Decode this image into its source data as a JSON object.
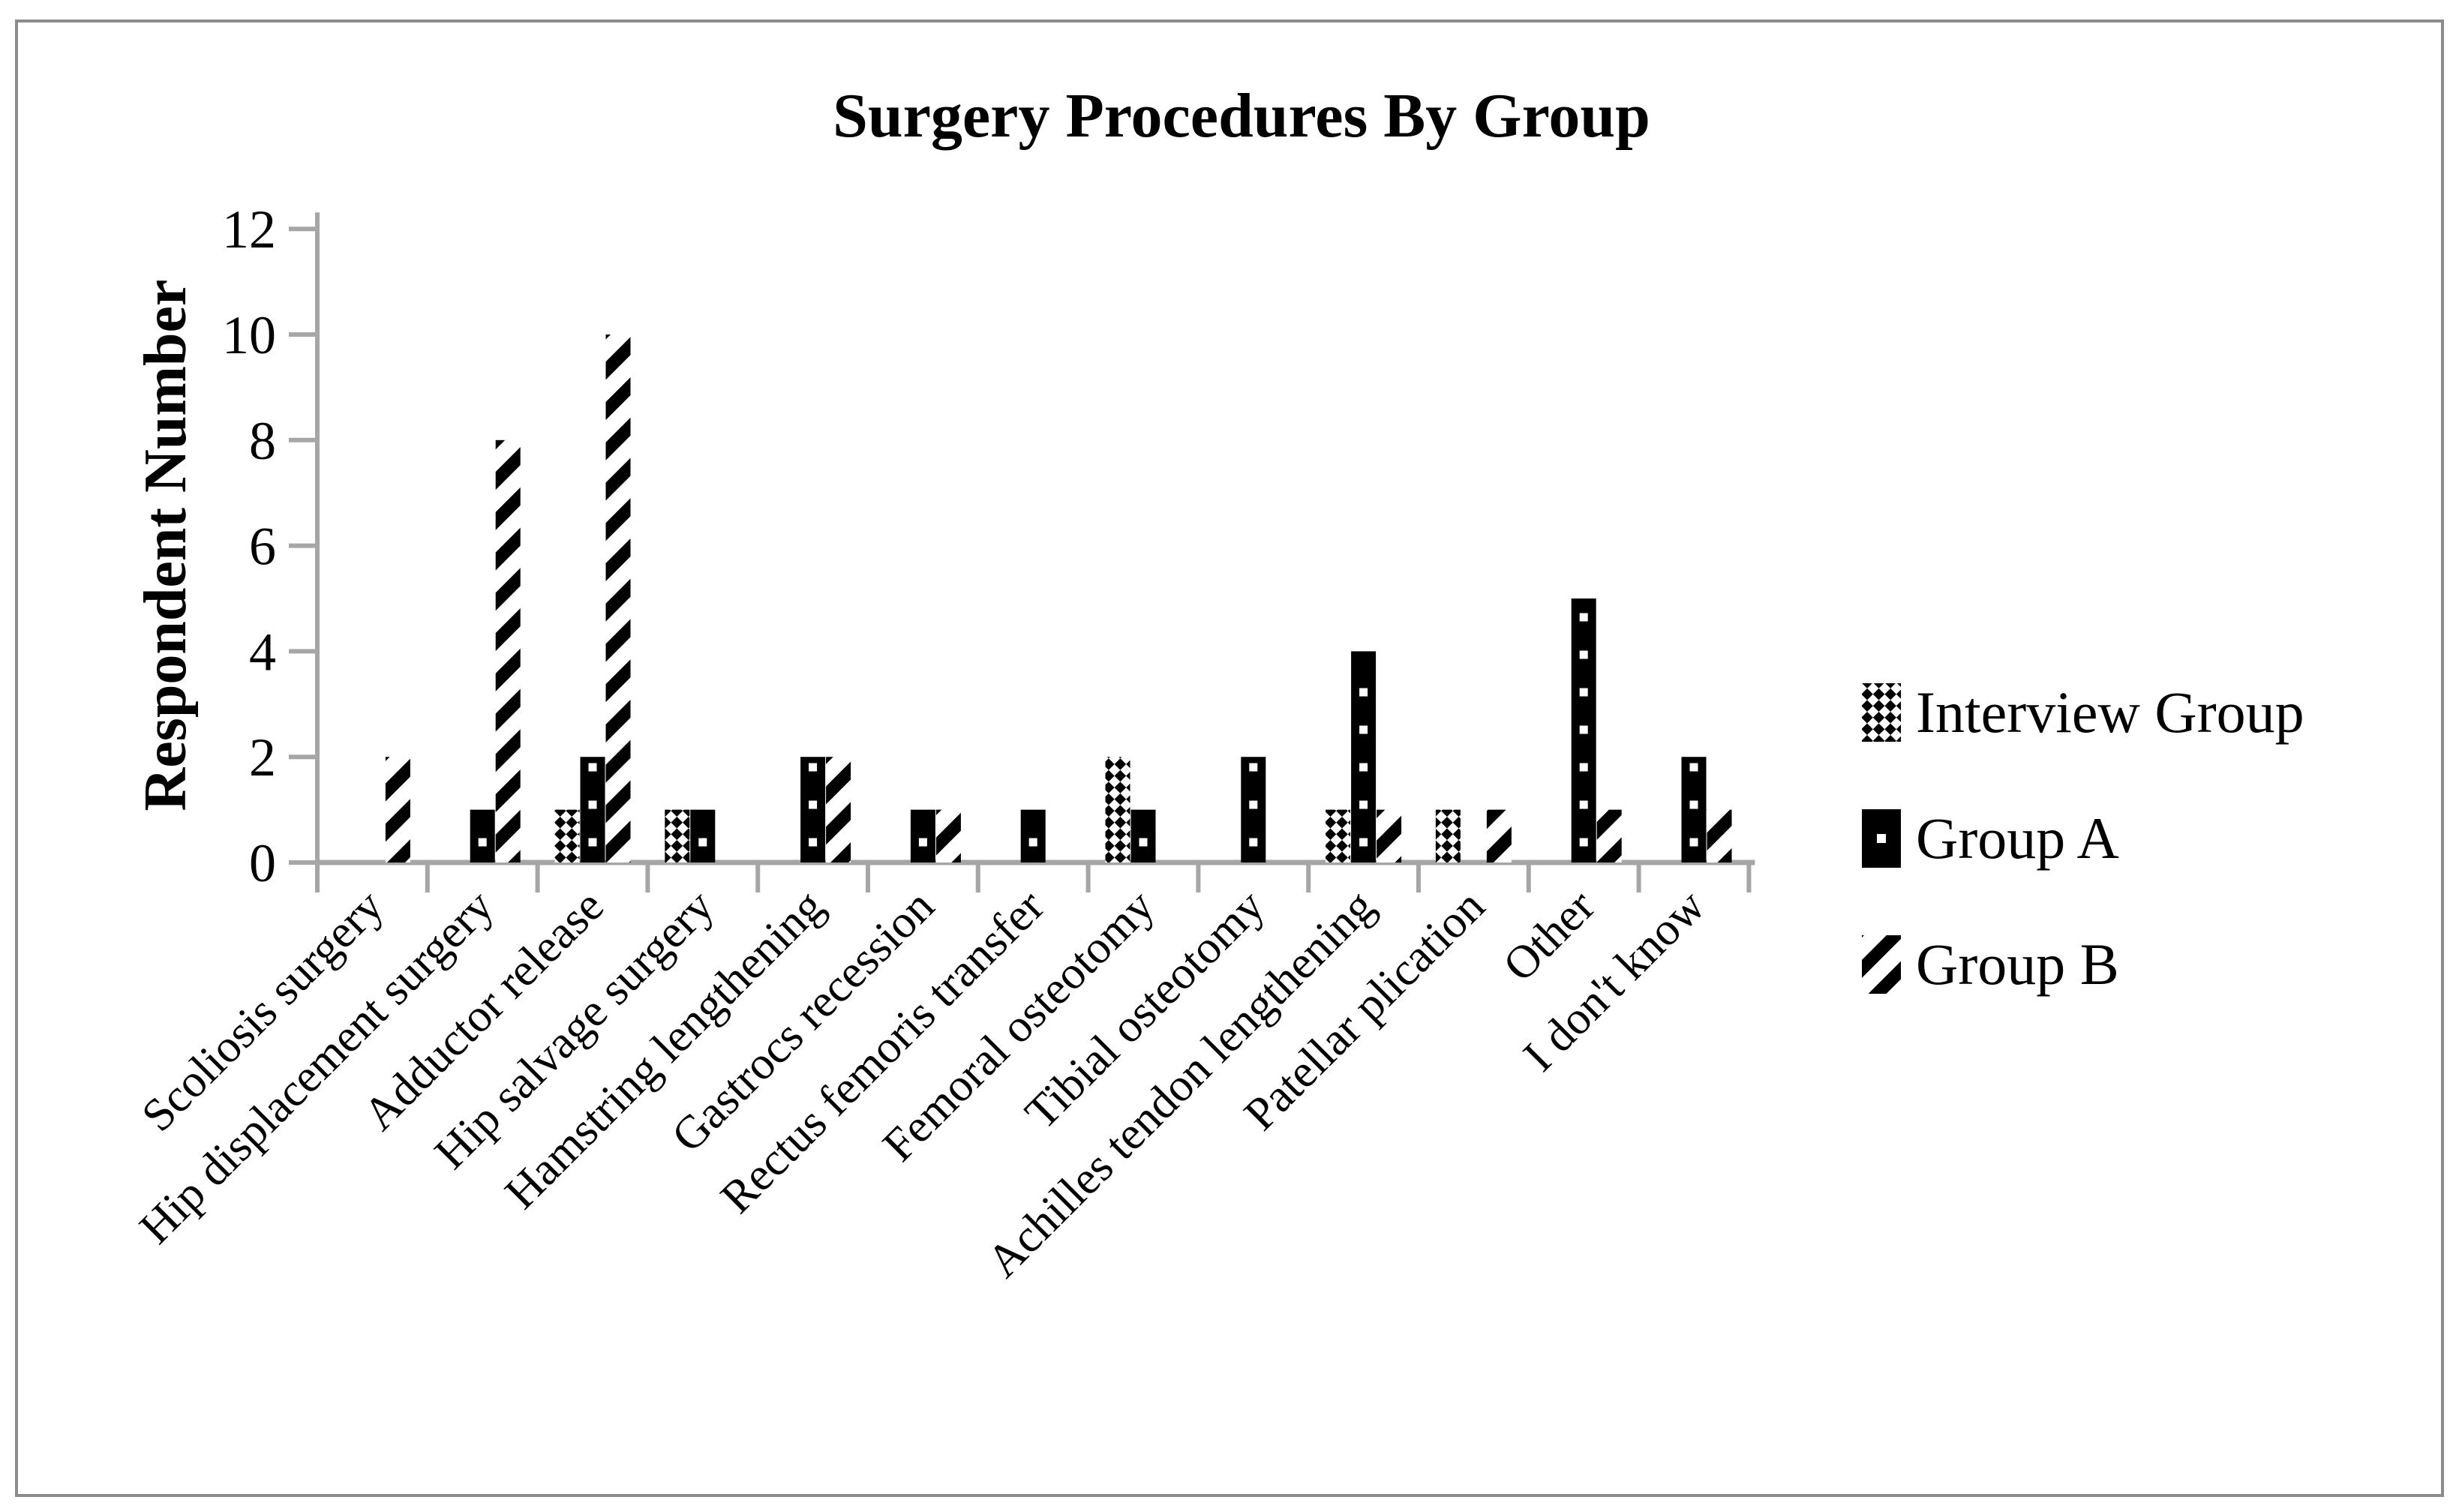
{
  "figure": {
    "kind": "excel-style clustered bar chart"
  },
  "chart_data": {
    "type": "bar",
    "title": "Surgery Procedures By Group",
    "xlabel": "",
    "ylabel": "Respondent Number",
    "ylim": [
      0,
      12
    ],
    "ytick_step": 2,
    "grid": false,
    "legend_position": "right",
    "categories": [
      "Scoliosis surgery",
      "Hip displacement surgery",
      "Adductor release",
      "Hip salvage surgery",
      "Hamstring lengthening",
      "Gastrocs recession",
      "Rectus femoris transfer",
      "Femoral osteotomy",
      "Tibial osteotomy",
      "Achilles tendon lengthening",
      "Patellar plication",
      "Other",
      "I don't know"
    ],
    "series": [
      {
        "name": "Interview Group",
        "pattern": "diagonal-checkerboard",
        "values": [
          0,
          0,
          1,
          1,
          0,
          0,
          0,
          2,
          0,
          1,
          1,
          0,
          0
        ]
      },
      {
        "name": "Group A",
        "pattern": "solid-black-white-dots",
        "values": [
          0,
          1,
          2,
          1,
          2,
          1,
          1,
          1,
          2,
          4,
          0,
          5,
          2
        ]
      },
      {
        "name": "Group B",
        "pattern": "diagonal-stripes",
        "values": [
          2,
          8,
          10,
          0,
          2,
          1,
          0,
          0,
          0,
          1,
          1,
          1,
          1
        ]
      }
    ],
    "y_tick_labels": [
      "0",
      "2",
      "4",
      "6",
      "8",
      "10",
      "12"
    ]
  },
  "colors": {
    "ink": "#000000",
    "pattern_background": "#ffffff",
    "axis": "#a6a6a6",
    "figure_border": "#8c8c8c",
    "background": "#ffffff"
  }
}
